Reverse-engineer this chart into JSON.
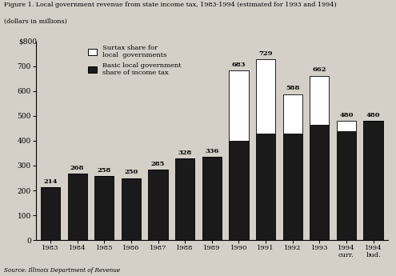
{
  "categories": [
    "1983",
    "1984",
    "1985",
    "1986",
    "1987",
    "1988",
    "1989",
    "1990",
    "1991",
    "1992",
    "1993",
    "1994\ncurr.",
    "1994\nbud."
  ],
  "basic": [
    214,
    268,
    258,
    250,
    285,
    328,
    336,
    400,
    430,
    430,
    465,
    440,
    480
  ],
  "surtax": [
    0,
    0,
    0,
    0,
    0,
    0,
    0,
    283,
    299,
    158,
    197,
    40,
    0
  ],
  "totals": [
    214,
    268,
    258,
    250,
    285,
    328,
    336,
    683,
    729,
    588,
    662,
    480,
    480
  ],
  "basic_color": "#1a1a1a",
  "surtax_color": "#ffffff",
  "edge_color": "#000000",
  "title_line1": "Figure 1. Local government revenue from state income tax, 1983-1994 (estimated for 1993 and 1994)",
  "title_line2": "(dollars in millions)",
  "ytick_label_top": "$800",
  "yticks": [
    0,
    100,
    200,
    300,
    400,
    500,
    600,
    700
  ],
  "ytick_labels": [
    "0",
    "100",
    "200",
    "300",
    "400",
    "500",
    "600",
    "700"
  ],
  "source": "Source: Illinois Department of Revenue",
  "legend_surtax": "Surtax share for\nlocal  governments",
  "legend_basic": "Basic local government\nshare of income tax",
  "background_color": "#d4d0c8",
  "bar_width": 0.72
}
